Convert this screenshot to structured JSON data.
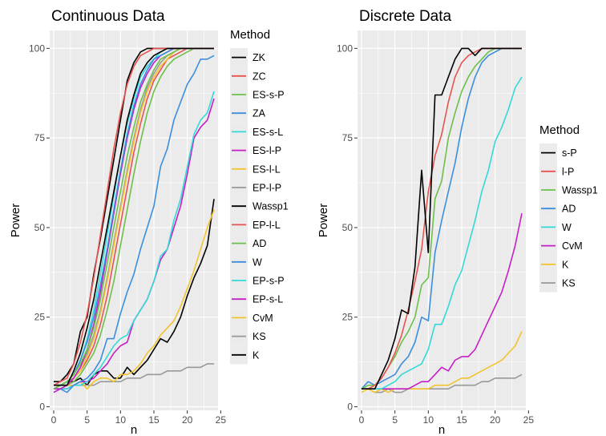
{
  "chart_data": [
    {
      "type": "line",
      "title": "Continuous Data",
      "xlabel": "n",
      "ylabel": "Power",
      "xlim": [
        -0.6,
        24.6
      ],
      "ylim": [
        -1,
        105
      ],
      "x_ticks": [
        0,
        5,
        10,
        15,
        20,
        25
      ],
      "y_ticks": [
        0,
        25,
        50,
        75,
        100
      ],
      "x_tick_labels": [
        "0",
        "5",
        "10",
        "15",
        "20",
        "25"
      ],
      "y_tick_labels": [
        "0",
        "25",
        "50",
        "75",
        "100"
      ],
      "grid": true,
      "legend": {
        "title": "Method",
        "placement": "right"
      },
      "x": [
        0,
        1,
        2,
        3,
        4,
        5,
        6,
        7,
        8,
        9,
        10,
        11,
        12,
        13,
        14,
        15,
        16,
        17,
        18,
        19,
        20,
        21,
        22,
        23,
        24
      ],
      "series": [
        {
          "name": "ZK",
          "color": "#000000",
          "values": [
            6,
            6,
            6,
            10,
            15,
            22,
            30,
            40,
            50,
            60,
            70,
            80,
            87,
            93,
            96,
            98,
            99,
            100,
            100,
            100,
            100,
            100,
            100,
            100,
            100
          ]
        },
        {
          "name": "ZC",
          "color": "#E8534F",
          "values": [
            6,
            7,
            8,
            12,
            18,
            26,
            36,
            48,
            60,
            72,
            82,
            90,
            95,
            98,
            99,
            100,
            100,
            100,
            100,
            100,
            100,
            100,
            100,
            100,
            100
          ]
        },
        {
          "name": "ES-s-P",
          "color": "#6CC04A",
          "values": [
            5,
            6,
            7,
            9,
            12,
            16,
            22,
            30,
            40,
            50,
            60,
            70,
            78,
            85,
            90,
            94,
            97,
            98,
            99,
            100,
            100,
            100,
            100,
            100,
            100
          ]
        },
        {
          "name": "ZA",
          "color": "#3C8EDC",
          "values": [
            6,
            6,
            7,
            9,
            13,
            18,
            25,
            34,
            44,
            55,
            66,
            76,
            84,
            90,
            94,
            97,
            98,
            99,
            100,
            100,
            100,
            100,
            100,
            100,
            100
          ]
        },
        {
          "name": "ES-s-L",
          "color": "#33D9D9",
          "values": [
            5,
            6,
            7,
            9,
            13,
            19,
            27,
            37,
            48,
            59,
            70,
            79,
            86,
            92,
            95,
            97,
            99,
            100,
            100,
            100,
            100,
            100,
            100,
            100,
            100
          ]
        },
        {
          "name": "ES-l-P",
          "color": "#C61FC6",
          "values": [
            5,
            5,
            6,
            8,
            11,
            16,
            23,
            32,
            43,
            54,
            65,
            75,
            83,
            89,
            93,
            96,
            98,
            99,
            100,
            100,
            100,
            100,
            100,
            100,
            100
          ]
        },
        {
          "name": "ES-l-L",
          "color": "#F2C32C",
          "values": [
            5,
            6,
            6,
            8,
            10,
            14,
            19,
            26,
            35,
            45,
            55,
            65,
            74,
            82,
            88,
            92,
            95,
            97,
            99,
            100,
            100,
            100,
            100,
            100,
            100
          ]
        },
        {
          "name": "EP-l-P",
          "color": "#999999",
          "values": [
            5,
            6,
            7,
            8,
            11,
            15,
            20,
            27,
            36,
            46,
            56,
            66,
            75,
            83,
            89,
            93,
            96,
            98,
            99,
            100,
            100,
            100,
            100,
            100,
            100
          ]
        },
        {
          "name": "Wassp1",
          "color": "#000000",
          "values": [
            7,
            7,
            9,
            12,
            21,
            25,
            37,
            47,
            58,
            69,
            80,
            91,
            96,
            99,
            100,
            100,
            100,
            100,
            100,
            100,
            100,
            100,
            100,
            100,
            100
          ]
        },
        {
          "name": "EP-l-L",
          "color": "#E8534F",
          "values": [
            5,
            6,
            6,
            8,
            10,
            13,
            17,
            23,
            31,
            41,
            51,
            61,
            71,
            79,
            86,
            91,
            94,
            97,
            98,
            99,
            100,
            100,
            100,
            100,
            100
          ]
        },
        {
          "name": "AD",
          "color": "#6CC04A",
          "values": [
            5,
            5,
            6,
            7,
            9,
            12,
            15,
            20,
            27,
            35,
            45,
            55,
            65,
            74,
            82,
            88,
            92,
            95,
            97,
            98,
            99,
            100,
            100,
            100,
            100
          ]
        },
        {
          "name": "W",
          "color": "#3C8EDC",
          "values": [
            5,
            5,
            4,
            6,
            7,
            8,
            10,
            13,
            19,
            19,
            26,
            32,
            37,
            44,
            50,
            56,
            67,
            72,
            80,
            85,
            90,
            93,
            97,
            97,
            98
          ]
        },
        {
          "name": "EP-s-P",
          "color": "#33D9D9",
          "values": [
            5,
            5,
            5,
            6,
            6,
            7,
            9,
            11,
            14,
            17,
            19,
            20,
            24,
            27,
            30,
            35,
            42,
            44,
            52,
            58,
            67,
            76,
            80,
            82,
            88
          ]
        },
        {
          "name": "EP-s-L",
          "color": "#C61FC6",
          "values": [
            4,
            5,
            5,
            6,
            7,
            7,
            8,
            10,
            12,
            15,
            17,
            18,
            24,
            27,
            30,
            35,
            41,
            44,
            50,
            56,
            65,
            75,
            78,
            80,
            86
          ]
        },
        {
          "name": "CvM",
          "color": "#F2C32C",
          "values": [
            5,
            5,
            6,
            6,
            7,
            5,
            7,
            8,
            8,
            7,
            9,
            9,
            10,
            12,
            15,
            17,
            20,
            22,
            24,
            28,
            33,
            38,
            44,
            50,
            55
          ]
        },
        {
          "name": "KS",
          "color": "#999999",
          "values": [
            4,
            5,
            5,
            6,
            6,
            6,
            6,
            7,
            7,
            7,
            7,
            8,
            8,
            8,
            9,
            9,
            9,
            10,
            10,
            10,
            11,
            11,
            11,
            12,
            12
          ]
        },
        {
          "name": "K",
          "color": "#000000",
          "values": [
            6,
            6,
            7,
            7,
            8,
            6,
            9,
            10,
            10,
            8,
            8,
            11,
            9,
            11,
            13,
            16,
            19,
            18,
            21,
            25,
            31,
            36,
            40,
            45,
            58
          ]
        }
      ]
    },
    {
      "type": "line",
      "title": "Discrete Data",
      "xlabel": "n",
      "ylabel": "Power",
      "xlim": [
        -0.6,
        24.6
      ],
      "ylim": [
        -1,
        105
      ],
      "x_ticks": [
        0,
        5,
        10,
        15,
        20,
        25
      ],
      "y_ticks": [
        0,
        25,
        50,
        75,
        100
      ],
      "x_tick_labels": [
        "0",
        "5",
        "10",
        "15",
        "20",
        "25"
      ],
      "y_tick_labels": [
        "0",
        "25",
        "50",
        "75",
        "100"
      ],
      "grid": true,
      "legend": {
        "title": "Method",
        "placement": "right"
      },
      "x": [
        0,
        1,
        2,
        3,
        4,
        5,
        6,
        7,
        8,
        9,
        10,
        11,
        12,
        13,
        14,
        15,
        16,
        17,
        18,
        19,
        20,
        21,
        22,
        23,
        24
      ],
      "series": [
        {
          "name": "s-P",
          "color": "#000000",
          "values": [
            5,
            5,
            5,
            9,
            13,
            19,
            27,
            26,
            39,
            66,
            43,
            87,
            87,
            92,
            97,
            100,
            100,
            98,
            100,
            100,
            100,
            100,
            100,
            100,
            100
          ]
        },
        {
          "name": "l-P",
          "color": "#E8534F",
          "values": [
            5,
            5,
            6,
            8,
            11,
            15,
            20,
            27,
            35,
            44,
            60,
            70,
            76,
            85,
            92,
            96,
            98,
            99,
            100,
            100,
            100,
            100,
            100,
            100,
            100
          ]
        },
        {
          "name": "Wassp1",
          "color": "#6CC04A",
          "values": [
            5,
            6,
            6,
            8,
            11,
            14,
            18,
            21,
            25,
            34,
            36,
            58,
            63,
            75,
            82,
            88,
            92,
            95,
            97,
            99,
            100,
            100,
            100,
            100,
            100
          ]
        },
        {
          "name": "AD",
          "color": "#3C8EDC",
          "values": [
            5,
            7,
            6,
            7,
            8,
            9,
            12,
            14,
            18,
            25,
            24,
            43,
            52,
            60,
            68,
            78,
            86,
            92,
            96,
            98,
            99,
            100,
            100,
            100,
            100
          ]
        },
        {
          "name": "W",
          "color": "#33D9D9",
          "values": [
            5,
            5,
            5,
            5,
            6,
            7,
            9,
            10,
            11,
            12,
            16,
            23,
            23,
            28,
            34,
            38,
            45,
            52,
            60,
            66,
            74,
            78,
            83,
            89,
            92
          ]
        },
        {
          "name": "CvM",
          "color": "#C61FC6",
          "values": [
            5,
            5,
            5,
            5,
            5,
            5,
            5,
            5,
            6,
            7,
            7,
            9,
            11,
            10,
            13,
            14,
            14,
            16,
            20,
            24,
            28,
            32,
            38,
            45,
            54
          ]
        },
        {
          "name": "K",
          "color": "#F2C32C",
          "values": [
            4,
            5,
            4,
            5,
            4,
            5,
            5,
            5,
            5,
            5,
            5,
            6,
            6,
            6,
            7,
            8,
            8,
            9,
            10,
            11,
            12,
            13,
            15,
            17,
            21
          ]
        },
        {
          "name": "KS",
          "color": "#999999",
          "values": [
            5,
            5,
            4,
            4,
            5,
            4,
            4,
            5,
            5,
            5,
            5,
            5,
            5,
            5,
            6,
            6,
            6,
            6,
            7,
            7,
            8,
            8,
            8,
            8,
            9
          ]
        }
      ]
    }
  ]
}
